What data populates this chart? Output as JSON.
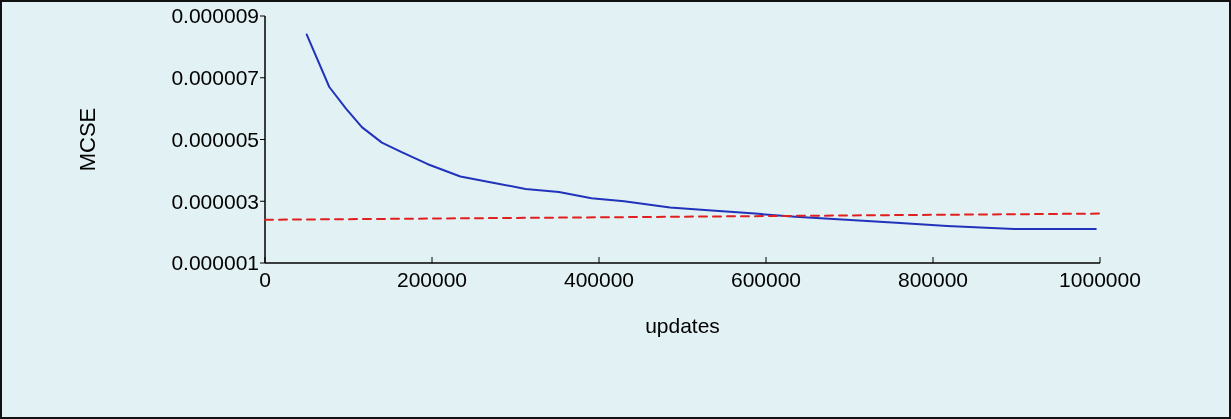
{
  "chart_data": {
    "type": "line",
    "xlabel": "updates",
    "ylabel": "MCSE",
    "xlim": [
      0,
      1000000
    ],
    "xticks": [
      0,
      200000,
      400000,
      600000,
      800000,
      1000000
    ],
    "ylim": [
      1e-06,
      9e-06
    ],
    "yticks": [
      {
        "value": 1e-06,
        "label": "0.000001"
      },
      {
        "value": 3e-06,
        "label": "0.000003"
      },
      {
        "value": 5e-06,
        "label": "0.000005"
      },
      {
        "value": 7e-06,
        "label": "0.000007"
      },
      {
        "value": 9e-06,
        "label": "0.000009"
      }
    ],
    "grid": false,
    "series": [
      {
        "color": "#2233bb",
        "line_style": "solid",
        "x": [
          50000,
          77000,
          97000,
          116000,
          140000,
          163000,
          195000,
          234000,
          273000,
          312000,
          352000,
          391000,
          430000,
          485000,
          535000,
          587000,
          635000,
          696000,
          756000,
          817000,
          897000,
          995000
        ],
        "values": [
          8.4e-06,
          6.7e-06,
          6e-06,
          5.4e-06,
          4.9e-06,
          4.6e-06,
          4.2e-06,
          3.8e-06,
          3.6e-06,
          3.4e-06,
          3.3e-06,
          3.1e-06,
          3e-06,
          2.8e-06,
          2.7e-06,
          2.6e-06,
          2.5e-06,
          2.4e-06,
          2.3e-06,
          2.2e-06,
          2.1e-06,
          2.1e-06
        ]
      },
      {
        "color": "#e02020",
        "line_style": "dashed",
        "x": [
          0,
          1000000
        ],
        "values": [
          2.4e-06,
          2.6e-06
        ]
      }
    ]
  }
}
